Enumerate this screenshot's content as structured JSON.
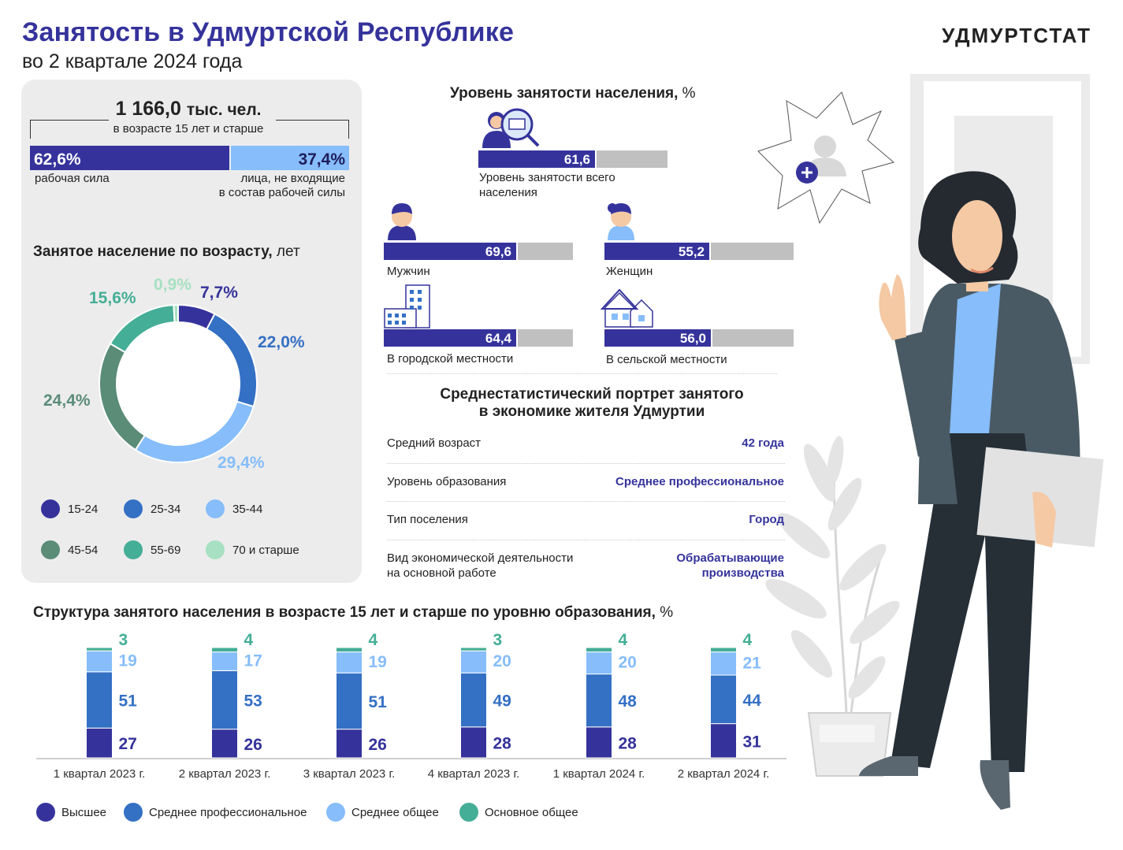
{
  "header": {
    "title": "Занятость в Удмуртской Республике",
    "subtitle": "во 2 квартале 2024 года",
    "brand": "УДМУРТСТАТ"
  },
  "population": {
    "total_value": "1 166,0",
    "total_unit": "тыс. чел.",
    "total_sub": "в возрасте 15 лет и старше",
    "labor_force_pct": "62,6%",
    "labor_force_label": "рабочая сила",
    "not_labor_force_pct": "37,4%",
    "not_labor_force_label_1": "лица, не входящие",
    "not_labor_force_label_2": "в состав рабочей силы"
  },
  "age": {
    "title": "Занятое население по возрасту,",
    "unit": "лет"
  },
  "employment": {
    "title": "Уровень занятости населения,",
    "unit": "%",
    "total_label_1": "Уровень занятости всего",
    "total_label_2": "населения",
    "men_label": "Мужчин",
    "women_label": "Женщин",
    "urban_label": "В городской местности",
    "rural_label": "В сельской местности"
  },
  "portrait": {
    "title_1": "Среднестатистический портрет занятого",
    "title_2": "в экономике жителя Удмуртии",
    "rows": [
      {
        "label": "Средний возраст",
        "label2": "",
        "value": "42 года",
        "value2": ""
      },
      {
        "label": "Уровень образования",
        "label2": "",
        "value": "Среднее профессиональное",
        "value2": ""
      },
      {
        "label": "Тип поселения",
        "label2": "",
        "value": "Город",
        "value2": ""
      },
      {
        "label": "Вид экономической деятельности",
        "label2": "на основной работе",
        "value": "Обрабатывающие",
        "value2": "производства"
      }
    ]
  },
  "education": {
    "title": "Структура занятого населения в возрасте 15 лет и старше по уровню образования,",
    "unit": "%"
  },
  "colors": {
    "navy": "#35339b",
    "blue": "#3470c4",
    "light_blue": "#86bdfa",
    "gray_green": "#5a8c78",
    "teal": "#44ae96",
    "mint": "#a7e0c2",
    "gray": "#c0c0c0"
  },
  "chart_data": [
    {
      "type": "pie",
      "title": "Занятое население по возрасту, лет",
      "categories": [
        "15-24",
        "25-34",
        "35-44",
        "45-54",
        "55-69",
        "70 и старше"
      ],
      "values": [
        7.7,
        22.0,
        29.4,
        24.4,
        15.6,
        0.9
      ],
      "labels": [
        "7,7%",
        "22,0%",
        "29,4%",
        "24,4%",
        "15,6%",
        "0,9%"
      ],
      "colors": [
        "#35339b",
        "#3470c4",
        "#86bdfa",
        "#5a8c78",
        "#44ae96",
        "#a7e0c2"
      ],
      "legend_position": "bottom"
    },
    {
      "type": "bar",
      "title": "Уровень занятости населения, %",
      "categories": [
        "Уровень занятости всего населения",
        "Мужчин",
        "Женщин",
        "В городской местности",
        "В сельской местности"
      ],
      "values": [
        61.6,
        69.6,
        55.2,
        64.4,
        56.0
      ],
      "labels": [
        "61,6",
        "69,6",
        "55,2",
        "64,4",
        "56,0"
      ],
      "ylim": [
        0,
        100
      ]
    },
    {
      "type": "bar",
      "title": "Структура занятого населения в возрасте 15 лет и старше по уровню образования, %",
      "stacked": true,
      "categories": [
        "1 квартал 2023 г.",
        "2 квартал 2023 г.",
        "3 квартал 2023 г.",
        "4 квартал 2023 г.",
        "1 квартал 2024 г.",
        "2 квартал 2024 г."
      ],
      "series": [
        {
          "name": "Высшее",
          "color": "#35339b",
          "values": [
            27,
            26,
            26,
            28,
            28,
            31
          ]
        },
        {
          "name": "Среднее профессиональное",
          "color": "#3470c4",
          "values": [
            51,
            53,
            51,
            49,
            48,
            44
          ]
        },
        {
          "name": "Среднее общее",
          "color": "#86bdfa",
          "values": [
            19,
            17,
            19,
            20,
            20,
            21
          ]
        },
        {
          "name": "Основное общее",
          "color": "#44ae96",
          "values": [
            3,
            4,
            4,
            3,
            4,
            4
          ]
        }
      ],
      "legend_position": "bottom"
    }
  ]
}
